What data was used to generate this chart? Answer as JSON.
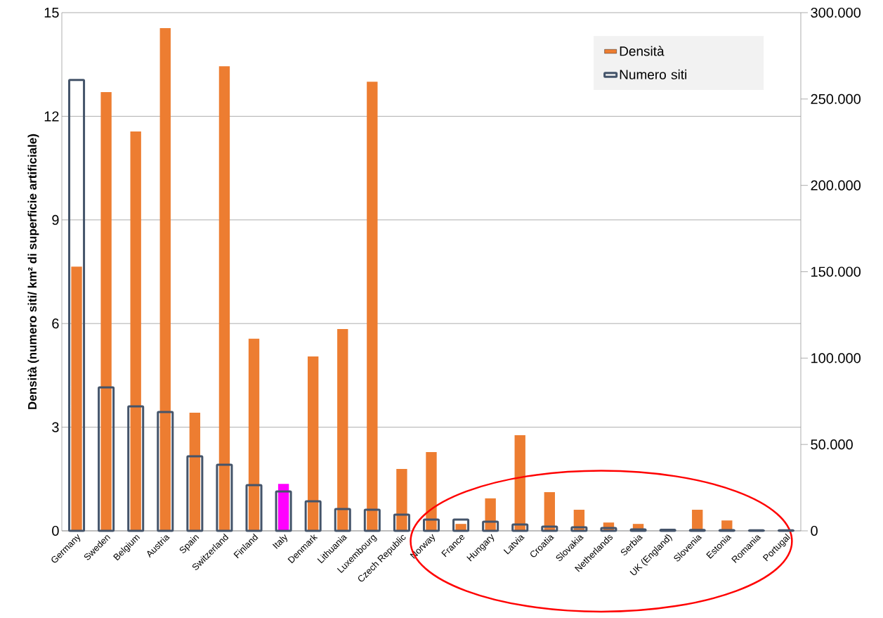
{
  "chart_data": {
    "type": "bar",
    "categories": [
      "Germany",
      "Sweden",
      "Belgium",
      "Austria",
      "Spain",
      "Switzerland",
      "Finland",
      "Italy",
      "Denmark",
      "Lithuania",
      "Luxembourg",
      "Czech Republic",
      "Norway",
      "France",
      "Hungary",
      "Latvia",
      "Croatia",
      "Slovakia",
      "Netherlands",
      "Serbia",
      "UK (England)",
      "Slovenia",
      "Estonia",
      "Romania",
      "Portugal"
    ],
    "ylabel": "Densità (numero siti/ km² di superficie artificiale)",
    "series": [
      {
        "name": "Densità",
        "color": "#ed7d31",
        "colors": [
          "#ed7d31",
          "#ed7d31",
          "#ed7d31",
          "#ed7d31",
          "#ed7d31",
          "#ed7d31",
          "#ed7d31",
          "#ff00ff",
          "#ed7d31",
          "#ed7d31",
          "#ed7d31",
          "#ed7d31",
          "#ed7d31",
          "#ed7d31",
          "#ed7d31",
          "#ed7d31",
          "#ed7d31",
          "#ed7d31",
          "#ed7d31",
          "#ed7d31",
          "#ed7d31",
          "#ed7d31",
          "#ed7d31",
          "#ed7d31",
          "#ed7d31"
        ],
        "values": [
          7.65,
          12.7,
          11.56,
          14.55,
          3.42,
          13.45,
          5.56,
          1.36,
          5.05,
          5.84,
          13.0,
          1.79,
          2.28,
          0.2,
          0.94,
          2.77,
          1.12,
          0.61,
          0.24,
          0.2,
          0,
          0.61,
          0.3,
          0,
          0
        ]
      },
      {
        "name": "Numero siti",
        "axis": "y2",
        "color": "#44546a",
        "values": [
          261000,
          83000,
          72000,
          68800,
          43100,
          38300,
          26500,
          22800,
          17100,
          12600,
          12200,
          9400,
          6500,
          6500,
          5300,
          3700,
          2400,
          2000,
          1600,
          800,
          600,
          500,
          400,
          300,
          300
        ]
      }
    ],
    "ylim": [
      0,
      15
    ],
    "yticks": [
      0,
      3,
      6,
      9,
      12,
      15
    ],
    "y2lim": [
      0,
      300000
    ],
    "y2ticks": [
      {
        "value": 0,
        "label": "0"
      },
      {
        "value": 50000,
        "label": "50.000"
      },
      {
        "value": 100000,
        "label": "100.000"
      },
      {
        "value": 150000,
        "label": "150.000"
      },
      {
        "value": 200000,
        "label": "200.000"
      },
      {
        "value": 250000,
        "label": "250.000"
      },
      {
        "value": 300000,
        "label": "300.000"
      }
    ],
    "grid": "y",
    "legend": "top right"
  }
}
